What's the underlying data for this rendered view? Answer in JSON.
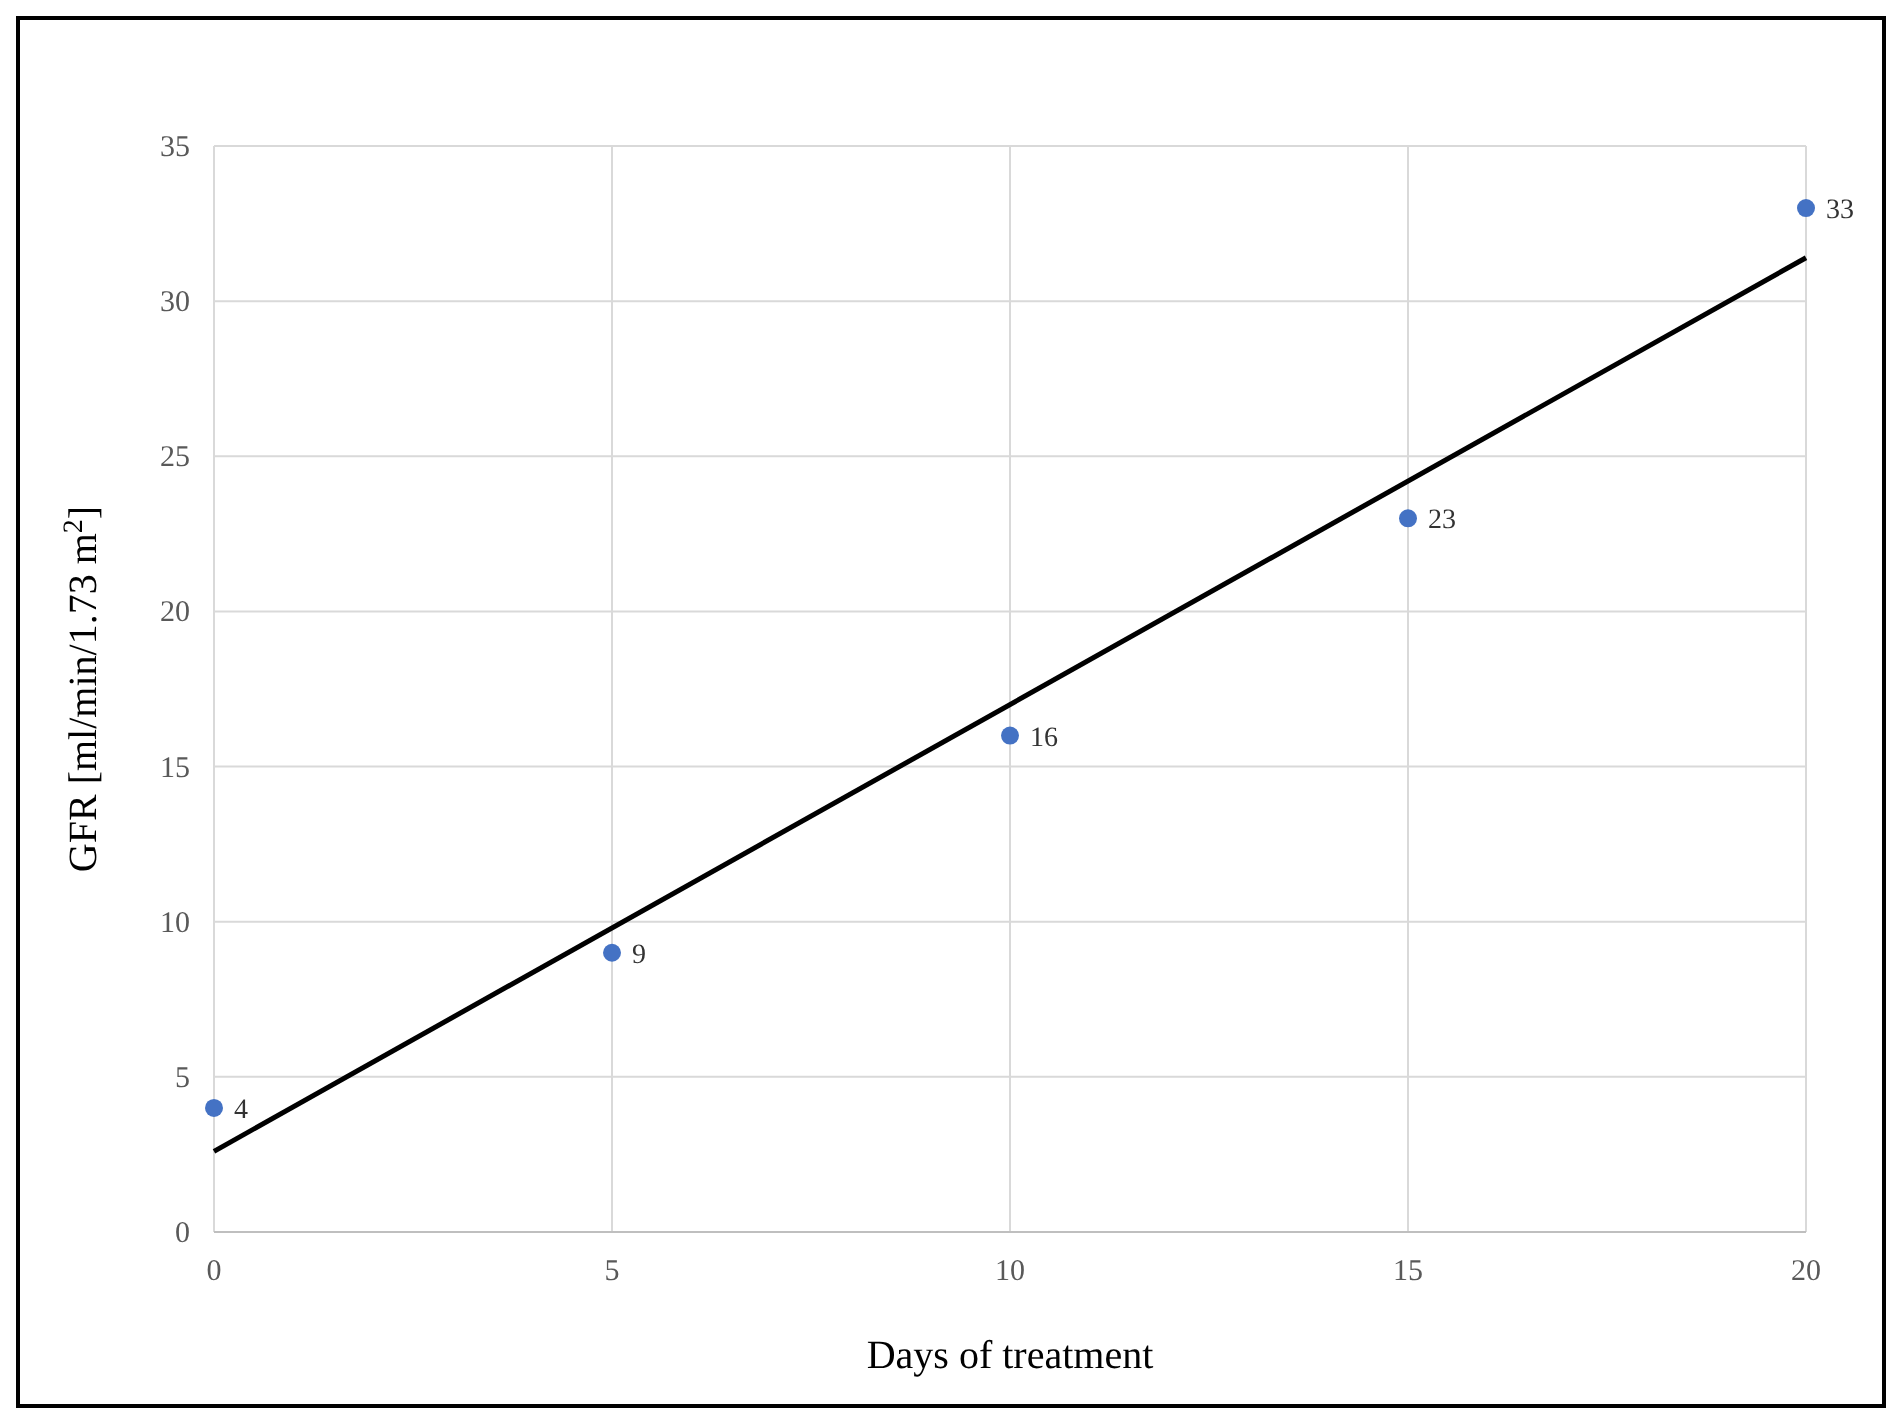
{
  "chart_data": {
    "type": "scatter",
    "xlabel": "Days of treatment",
    "ylabel": "GFR [ml/min/1.73 m$^{2}$]",
    "xlim": [
      0,
      20
    ],
    "xticks": [
      0,
      5,
      10,
      15,
      20
    ],
    "ylim": [
      0,
      35
    ],
    "yticks": [
      0,
      5,
      10,
      15,
      20,
      25,
      30,
      35
    ],
    "grid": true,
    "series": [
      {
        "marker": "circle",
        "color": "#4472c4",
        "x": [
          0,
          5,
          10,
          15,
          20
        ],
        "values": [
          4,
          9,
          16,
          23,
          33
        ],
        "value_labels": [
          "4",
          "9",
          "16",
          "23",
          "33"
        ]
      },
      {
        "type": "line",
        "color": "#000000",
        "x": [
          0,
          20
        ],
        "values": [
          2.6,
          31.4
        ],
        "line_style": "solid"
      }
    ]
  }
}
